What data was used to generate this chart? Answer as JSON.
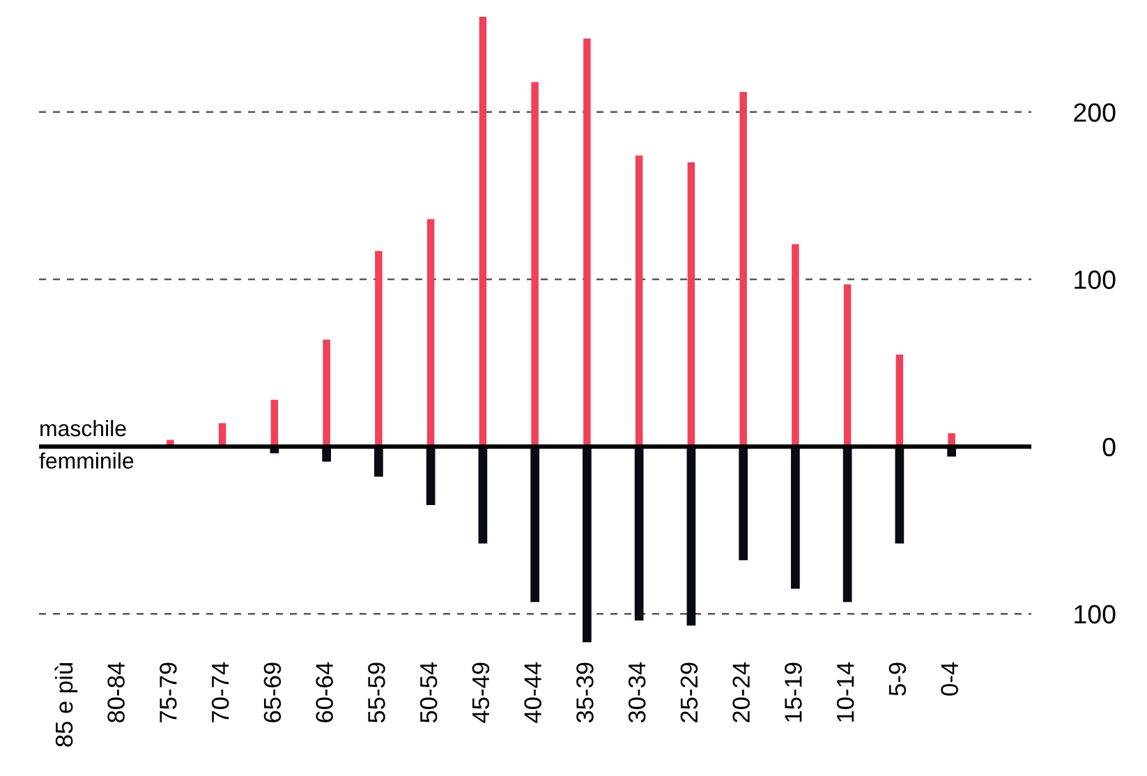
{
  "chart_data": {
    "type": "bar",
    "stacked": true,
    "categories": [
      "85 e più",
      "80-84",
      "75-79",
      "70-74",
      "65-69",
      "60-64",
      "55-59",
      "50-54",
      "45-49",
      "40-44",
      "35-39",
      "30-34",
      "25-29",
      "20-24",
      "15-19",
      "10-14",
      "5-9",
      "0-4"
    ],
    "series": [
      {
        "color": "#f0405a",
        "values": [
          0,
          0,
          4,
          14,
          28,
          64,
          117,
          136,
          257,
          218,
          244,
          174,
          170,
          212,
          121,
          97,
          55,
          8
        ]
      },
      {
        "color": "#0a0a14",
        "values": [
          0,
          0,
          0,
          0,
          -4,
          -9,
          -18,
          -35,
          -58,
          -93,
          -117,
          -104,
          -107,
          -68,
          -85,
          -93,
          -58,
          -6
        ]
      }
    ],
    "yticks": [
      {
        "value": -100,
        "label": "100"
      },
      0,
      100,
      200
    ],
    "ylim": [
      -117,
      257
    ],
    "ref_lines": [
      {
        "axis": "y",
        "value": 0,
        "color": "#000000",
        "line_style": "solid"
      },
      {
        "axis": "y",
        "value": -100,
        "color": "#555555",
        "line_style": "dashed"
      },
      {
        "axis": "y",
        "value": 100,
        "color": "#555555",
        "line_style": "dashed"
      },
      {
        "axis": "y",
        "value": 200,
        "color": "#555555",
        "line_style": "dashed"
      }
    ],
    "annotations": [
      "maschile",
      "femminile"
    ]
  }
}
